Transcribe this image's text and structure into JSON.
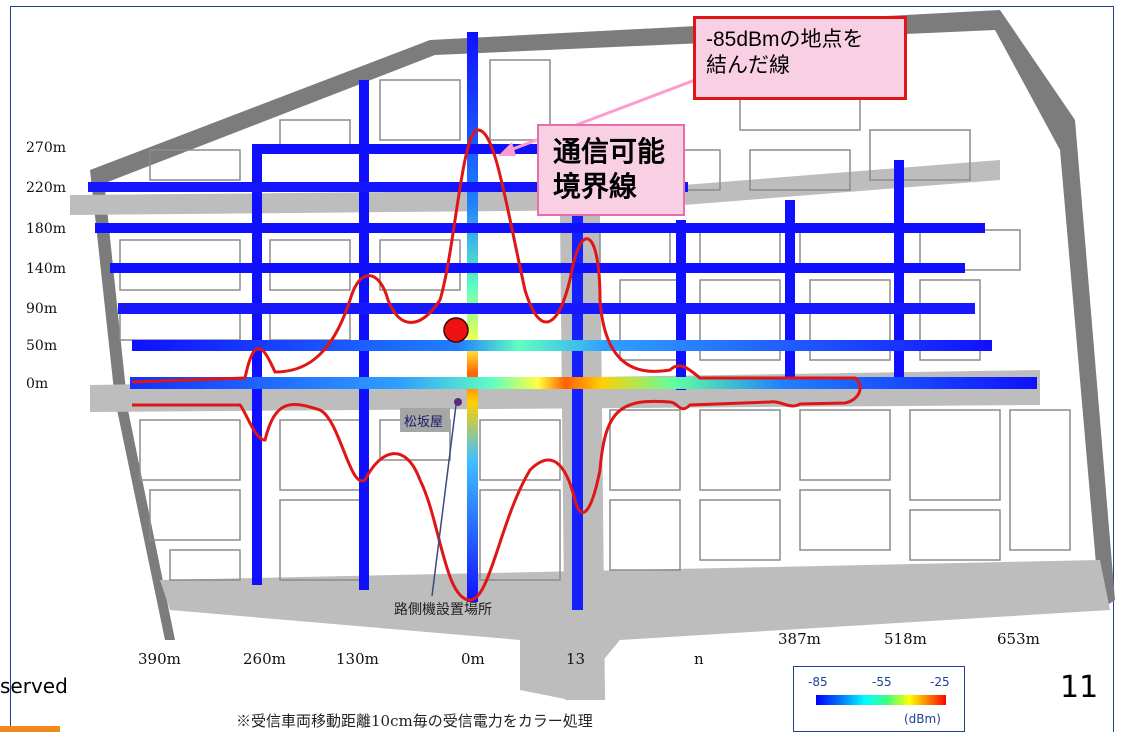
{
  "callouts": {
    "line_85dbm": "-85dBmの地点を\n結んだ線",
    "boundary": "通信可能\n境界線"
  },
  "map": {
    "y_labels": [
      "270m",
      "220m",
      "180m",
      "140m",
      "90m",
      "50m",
      "0m"
    ],
    "x_labels": [
      "390m",
      "260m",
      "130m",
      "0m",
      "13",
      "n",
      "387m",
      "518m",
      "653m"
    ],
    "landmark": "松坂屋",
    "roadside_unit_label": "路側機設置場所"
  },
  "legend": {
    "ticks": [
      "-85",
      "-55",
      "-25"
    ],
    "unit": "(dBm)"
  },
  "footer": {
    "copyright_fragment": "served",
    "page_number": "11",
    "caption": "※受信車両移動距離10cm毎の受信電力をカラー処理"
  },
  "colors": {
    "boundary_line": "#e01515",
    "signal_low": "#0000ff",
    "signal_high": "#ff0000",
    "callout_fill": "#f9cfe3",
    "accent_orange": "#f08a1c"
  }
}
